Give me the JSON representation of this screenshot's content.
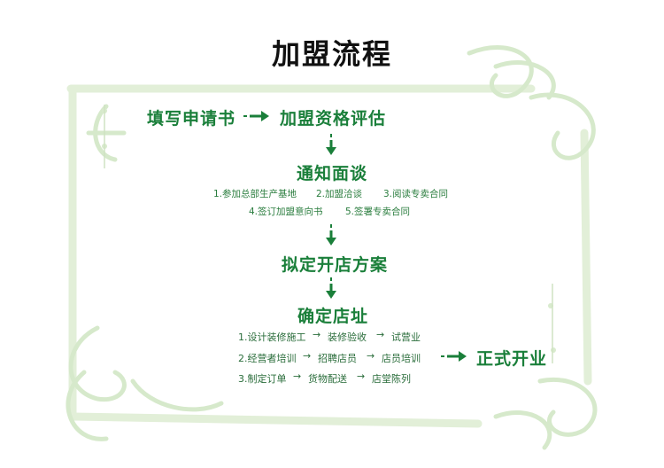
{
  "title": "加盟流程",
  "steps": {
    "apply": "填写申请书",
    "evaluate": "加盟资格评估",
    "interview": "通知面谈",
    "plan": "拟定开店方案",
    "location": "确定店址",
    "open": "正式开业"
  },
  "interview_items": {
    "row1": [
      "1.参加总部生产基地",
      "2.加盟洽谈",
      "3.阅读专卖合同"
    ],
    "row2": [
      "4.签订加盟意向书",
      "5.签署专卖合同"
    ]
  },
  "location_items": {
    "row1": [
      "1.设计装修施工",
      "装修验收",
      "试营业"
    ],
    "row2": [
      "2.经营者培训",
      "招聘店员",
      "店员培训"
    ],
    "row3": [
      "3.制定订单",
      "货物配送",
      "店堂陈列"
    ]
  },
  "colors": {
    "green": "#1a7f3a",
    "frame": "#e4f0dc",
    "frame_dark": "#cfe4c4"
  }
}
